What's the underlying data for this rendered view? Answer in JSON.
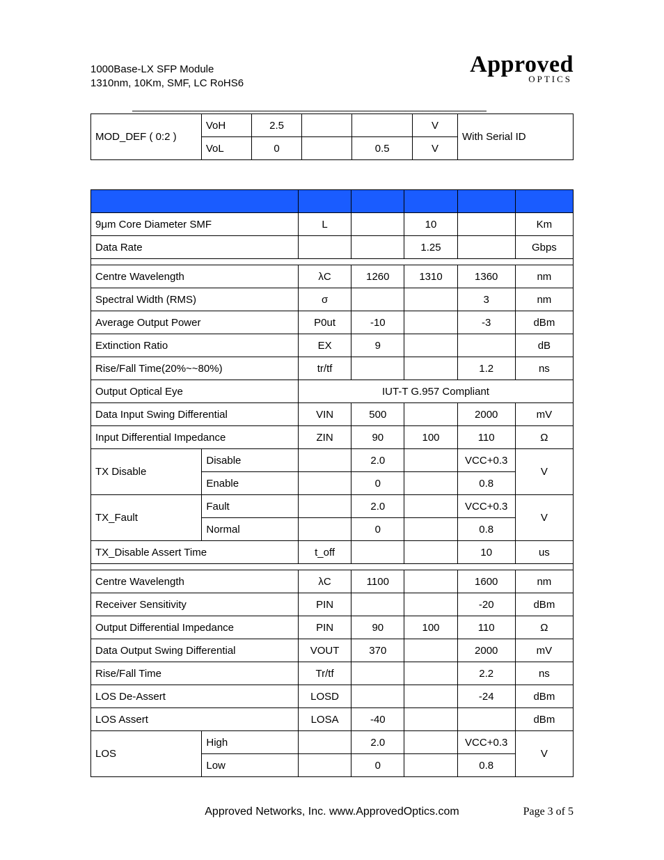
{
  "header": {
    "line1": "1000Base-LX SFP Module",
    "line2": "1310nm, 10Km, SMF, LC RoHS6",
    "logo_main": "Approved",
    "logo_sub": "OPTICS"
  },
  "colors": {
    "blue_header": "#1a5cff",
    "border": "#000000",
    "background": "#ffffff",
    "text": "#000000"
  },
  "table1": {
    "col_widths_pct": [
      17,
      8,
      8,
      8,
      8,
      8,
      18
    ],
    "rows": [
      {
        "rowspan_label": "MOD_DEF ( 0:2 )",
        "sub": "VoH",
        "min": "2.5",
        "typ": "",
        "max": "",
        "unit": "V",
        "note_rowspan": "With Serial ID"
      },
      {
        "sub": "VoL",
        "min": "0",
        "typ": "",
        "max": "0.5",
        "unit": "V"
      }
    ]
  },
  "table2": {
    "col_widths_pct": [
      23,
      20,
      11,
      11,
      11,
      12,
      12
    ],
    "sections": [
      {
        "blue_header": true,
        "rows": [
          {
            "param": "9μm Core Diameter SMF",
            "colspan2": true,
            "sym": "L",
            "min": "",
            "typ": "10",
            "max": "",
            "unit": "Km"
          },
          {
            "param": "Data Rate",
            "colspan2": true,
            "sym": "",
            "min": "",
            "typ": "1.25",
            "max": "",
            "unit": "Gbps"
          }
        ]
      },
      {
        "spacer": true,
        "rows": [
          {
            "param": "Centre Wavelength",
            "colspan2": true,
            "sym": "λC",
            "min": "1260",
            "typ": "1310",
            "max": "1360",
            "unit": "nm"
          },
          {
            "param": "Spectral Width (RMS)",
            "colspan2": true,
            "sym": "σ",
            "min": "",
            "typ": "",
            "max": "3",
            "unit": "nm"
          },
          {
            "param": "Average Output Power",
            "colspan2": true,
            "sym": "P0ut",
            "min": "-10",
            "typ": "",
            "max": "-3",
            "unit": "dBm"
          },
          {
            "param": "Extinction Ratio",
            "colspan2": true,
            "sym": "EX",
            "min": "9",
            "typ": "",
            "max": "",
            "unit": "dB"
          },
          {
            "param": "Rise/Fall Time(20%~~80%)",
            "colspan2": true,
            "sym": "tr/tf",
            "min": "",
            "typ": "",
            "max": "1.2",
            "unit": "ns"
          },
          {
            "param": "Output Optical Eye",
            "colspan2": true,
            "merged_rest": "IUT-T G.957 Compliant"
          },
          {
            "param": "Data Input Swing Differential",
            "colspan2": true,
            "sym": "VIN",
            "min": "500",
            "typ": "",
            "max": "2000",
            "unit": "mV"
          },
          {
            "param": "Input Differential Impedance",
            "colspan2": true,
            "sym": "ZIN",
            "min": "90",
            "typ": "100",
            "max": "110",
            "unit": "Ω"
          },
          {
            "param": "TX Disable",
            "sub": "Disable",
            "sym": "",
            "min": "2.0",
            "typ": "",
            "max": "VCC+0.3",
            "unit_rowspan": "V",
            "group_rows": 2
          },
          {
            "sub": "Enable",
            "sym": "",
            "min": "0",
            "typ": "",
            "max": "0.8"
          },
          {
            "param": "TX_Fault",
            "sub": "Fault",
            "sym": "",
            "min": "2.0",
            "typ": "",
            "max": "VCC+0.3",
            "unit_rowspan": "V",
            "group_rows": 2
          },
          {
            "sub": "Normal",
            "sym": "",
            "min": "0",
            "typ": "",
            "max": "0.8"
          },
          {
            "param": "TX_Disable Assert Time",
            "colspan2": true,
            "sym": "t_off",
            "min": "",
            "typ": "",
            "max": "10",
            "unit": "us"
          }
        ]
      },
      {
        "spacer": true,
        "rows": [
          {
            "param": "Centre Wavelength",
            "colspan2": true,
            "sym": "λC",
            "min": "1100",
            "typ": "",
            "max": "1600",
            "unit": "nm"
          },
          {
            "param": "Receiver Sensitivity",
            "colspan2": true,
            "sym": "PIN",
            "min": "",
            "typ": "",
            "max": "-20",
            "unit": "dBm"
          },
          {
            "param": "Output Differential Impedance",
            "colspan2": true,
            "sym": "PIN",
            "min": "90",
            "typ": "100",
            "max": "110",
            "unit": "Ω"
          },
          {
            "param": "Data Output Swing Differential",
            "colspan2": true,
            "sym": "VOUT",
            "min": "370",
            "typ": "",
            "max": "2000",
            "unit": "mV"
          },
          {
            "param": "Rise/Fall Time",
            "colspan2": true,
            "sym": "Tr/tf",
            "min": "",
            "typ": "",
            "max": "2.2",
            "unit": "ns"
          },
          {
            "param": "LOS De-Assert",
            "colspan2": true,
            "sym": "LOSD",
            "min": "",
            "typ": "",
            "max": "-24",
            "unit": "dBm"
          },
          {
            "param": "LOS Assert",
            "colspan2": true,
            "sym": "LOSA",
            "min": "-40",
            "typ": "",
            "max": "",
            "unit": "dBm"
          },
          {
            "param": "LOS",
            "sub": "High",
            "sym": "",
            "min": "2.0",
            "typ": "",
            "max": "VCC+0.3",
            "unit_rowspan": "V",
            "group_rows": 2
          },
          {
            "sub": "Low",
            "sym": "",
            "min": "0",
            "typ": "",
            "max": "0.8"
          }
        ]
      }
    ]
  },
  "footer": {
    "text": "Approved Networks, Inc.  www.ApprovedOptics.com",
    "page": "Page 3 of 5"
  }
}
